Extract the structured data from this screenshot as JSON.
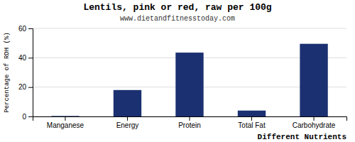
{
  "chart_data": {
    "type": "bar",
    "title": "Lentils, pink or red, raw per 100g",
    "subtitle": "www.dietandfitnesstoday.com",
    "xlabel": "Different Nutrients",
    "ylabel": "Percentage of RDH (%)",
    "categories": [
      "Manganese",
      "Energy",
      "Protein",
      "Total Fat",
      "Carbohydrate"
    ],
    "values": [
      0.3,
      18,
      43.5,
      4.0,
      49.5
    ],
    "color": "#1a3070",
    "ylim": [
      0,
      60
    ],
    "yticks": [
      0,
      20,
      40,
      60
    ],
    "grid": true
  }
}
